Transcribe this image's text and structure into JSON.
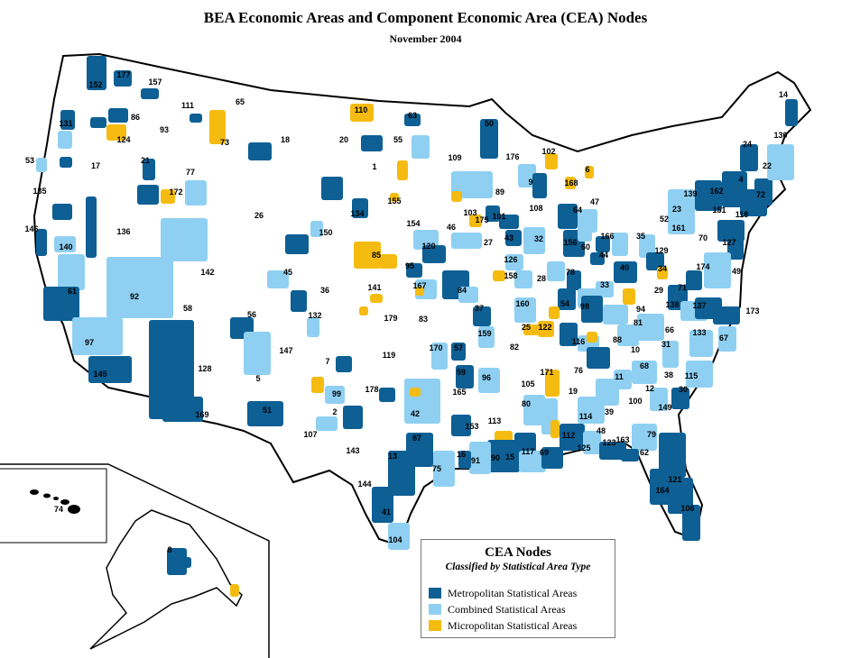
{
  "title": "BEA Economic Areas and Component Economic Area (CEA) Nodes",
  "subtitle": "November 2004",
  "legend": {
    "title": "CEA Nodes",
    "subtitle": "Classified by Statistical Area Type",
    "items": [
      {
        "label": "Metropolitan Statistical Areas",
        "color": "#0d5f94"
      },
      {
        "label": "Combined Statistical Areas",
        "color": "#8fd0f2"
      },
      {
        "label": "Micropolitan Statistical Areas",
        "color": "#f5bb10"
      }
    ]
  },
  "region_labels": [
    "177",
    "152",
    "157",
    "111",
    "65",
    "131",
    "86",
    "93",
    "124",
    "73",
    "18",
    "53",
    "17",
    "21",
    "77",
    "172",
    "135",
    "26",
    "136",
    "146",
    "140",
    "142",
    "61",
    "92",
    "58",
    "97",
    "56",
    "128",
    "145",
    "169",
    "110",
    "63",
    "50",
    "20",
    "55",
    "1",
    "109",
    "176",
    "102",
    "6",
    "14",
    "130",
    "24",
    "22",
    "4",
    "162",
    "72",
    "118",
    "151",
    "139",
    "23",
    "52",
    "161",
    "127",
    "35",
    "129",
    "70",
    "34",
    "174",
    "49",
    "29",
    "138",
    "71",
    "137",
    "173",
    "66",
    "133",
    "67",
    "81",
    "31",
    "115",
    "38",
    "30",
    "149",
    "100",
    "68",
    "12",
    "10",
    "39",
    "114",
    "48",
    "163",
    "123",
    "125",
    "62",
    "79",
    "121",
    "164",
    "106",
    "112",
    "76",
    "19",
    "171",
    "11",
    "116",
    "88",
    "94",
    "98",
    "33",
    "40",
    "44",
    "78",
    "54",
    "60",
    "156",
    "166",
    "32",
    "108",
    "64",
    "47",
    "168",
    "9",
    "101",
    "89",
    "175",
    "43",
    "27",
    "126",
    "158",
    "28",
    "160",
    "25",
    "122",
    "103",
    "46",
    "155",
    "134",
    "150",
    "154",
    "85",
    "120",
    "95",
    "141",
    "167",
    "84",
    "45",
    "36",
    "132",
    "179",
    "83",
    "37",
    "159",
    "82",
    "105",
    "80",
    "170",
    "57",
    "59",
    "96",
    "165",
    "119",
    "7",
    "178",
    "99",
    "2",
    "147",
    "5",
    "51",
    "107",
    "42",
    "143",
    "87",
    "13",
    "144",
    "41",
    "104",
    "75",
    "16",
    "91",
    "90",
    "15",
    "117",
    "69",
    "153",
    "113",
    "74",
    "8"
  ]
}
